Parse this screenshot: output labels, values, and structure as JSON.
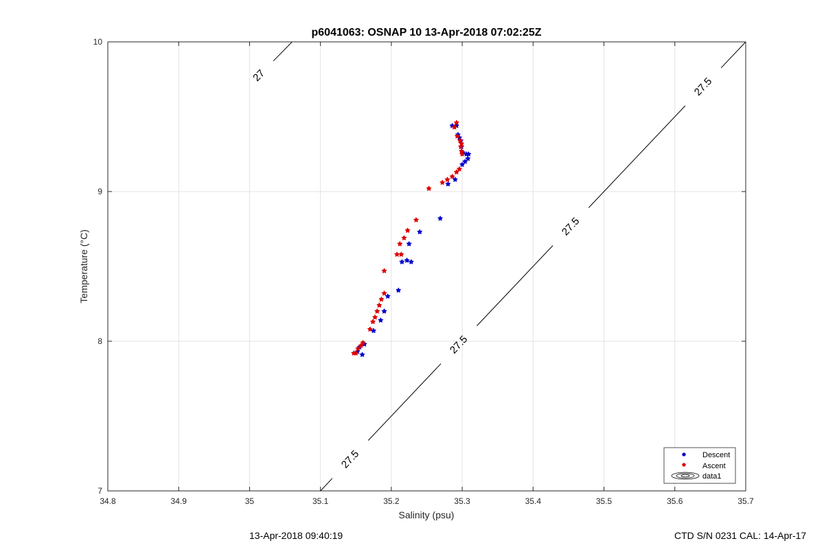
{
  "chart_data": {
    "type": "scatter",
    "title": "p6041063: OSNAP 10 13-Apr-2018 07:02:25Z",
    "xlabel": "Salinity (psu)",
    "ylabel": "Temperature (°C)",
    "xlim": [
      34.8,
      35.7
    ],
    "ylim": [
      7,
      10
    ],
    "x_ticks": [
      "34.8",
      "34.9",
      "35",
      "35.1",
      "35.2",
      "35.3",
      "35.4",
      "35.5",
      "35.6",
      "35.7"
    ],
    "y_ticks": [
      "7",
      "8",
      "9",
      "10"
    ],
    "grid": true,
    "legend_position": "bottom-right",
    "series": [
      {
        "name": "Descent",
        "color": "#0000cc",
        "points": [
          [
            35.286,
            9.44
          ],
          [
            35.292,
            9.44
          ],
          [
            35.294,
            9.38
          ],
          [
            35.296,
            9.36
          ],
          [
            35.298,
            9.34
          ],
          [
            35.299,
            9.3
          ],
          [
            35.301,
            9.26
          ],
          [
            35.306,
            9.25
          ],
          [
            35.309,
            9.25
          ],
          [
            35.308,
            9.22
          ],
          [
            35.304,
            9.2
          ],
          [
            35.3,
            9.18
          ],
          [
            35.29,
            9.08
          ],
          [
            35.28,
            9.05
          ],
          [
            35.269,
            8.82
          ],
          [
            35.24,
            8.73
          ],
          [
            35.225,
            8.65
          ],
          [
            35.222,
            8.54
          ],
          [
            35.228,
            8.53
          ],
          [
            35.215,
            8.53
          ],
          [
            35.21,
            8.34
          ],
          [
            35.195,
            8.3
          ],
          [
            35.19,
            8.2
          ],
          [
            35.185,
            8.14
          ],
          [
            35.175,
            8.07
          ],
          [
            35.162,
            7.98
          ],
          [
            35.155,
            7.96
          ],
          [
            35.152,
            7.93
          ],
          [
            35.159,
            7.91
          ]
        ]
      },
      {
        "name": "Ascent",
        "color": "#dd0000",
        "points": [
          [
            35.292,
            9.46
          ],
          [
            35.289,
            9.43
          ],
          [
            35.293,
            9.37
          ],
          [
            35.297,
            9.34
          ],
          [
            35.299,
            9.32
          ],
          [
            35.298,
            9.3
          ],
          [
            35.299,
            9.27
          ],
          [
            35.3,
            9.25
          ],
          [
            35.296,
            9.15
          ],
          [
            35.292,
            9.13
          ],
          [
            35.286,
            9.1
          ],
          [
            35.279,
            9.08
          ],
          [
            35.272,
            9.06
          ],
          [
            35.253,
            9.02
          ],
          [
            35.235,
            8.81
          ],
          [
            35.223,
            8.74
          ],
          [
            35.218,
            8.69
          ],
          [
            35.212,
            8.65
          ],
          [
            35.214,
            8.58
          ],
          [
            35.208,
            8.58
          ],
          [
            35.19,
            8.47
          ],
          [
            35.19,
            8.32
          ],
          [
            35.186,
            8.28
          ],
          [
            35.183,
            8.24
          ],
          [
            35.18,
            8.2
          ],
          [
            35.177,
            8.16
          ],
          [
            35.174,
            8.13
          ],
          [
            35.17,
            8.08
          ],
          [
            35.16,
            7.99
          ],
          [
            35.157,
            7.97
          ],
          [
            35.153,
            7.95
          ],
          [
            35.15,
            7.92
          ],
          [
            35.147,
            7.92
          ]
        ]
      }
    ],
    "contours": [
      {
        "name": "data1",
        "color": "#000000",
        "lines": [
          {
            "value": "27",
            "points": [
              [
                35.0,
                9.71
              ],
              [
                35.06,
                10.0
              ]
            ],
            "labels": [
              [
                35.01,
                9.79
              ]
            ]
          },
          {
            "value": "27.5",
            "points": [
              [
                35.1,
                7.0
              ],
              [
                35.7,
                10.0
              ]
            ],
            "labels": [
              [
                35.14,
                7.22
              ],
              [
                35.29,
                8.0
              ],
              [
                35.45,
                8.78
              ],
              [
                35.64,
                9.7
              ]
            ]
          }
        ]
      }
    ]
  },
  "footer": {
    "timestamp": "13-Apr-2018 09:40:19",
    "ctd_info": "CTD S/N 0231  CAL: 14-Apr-17"
  }
}
